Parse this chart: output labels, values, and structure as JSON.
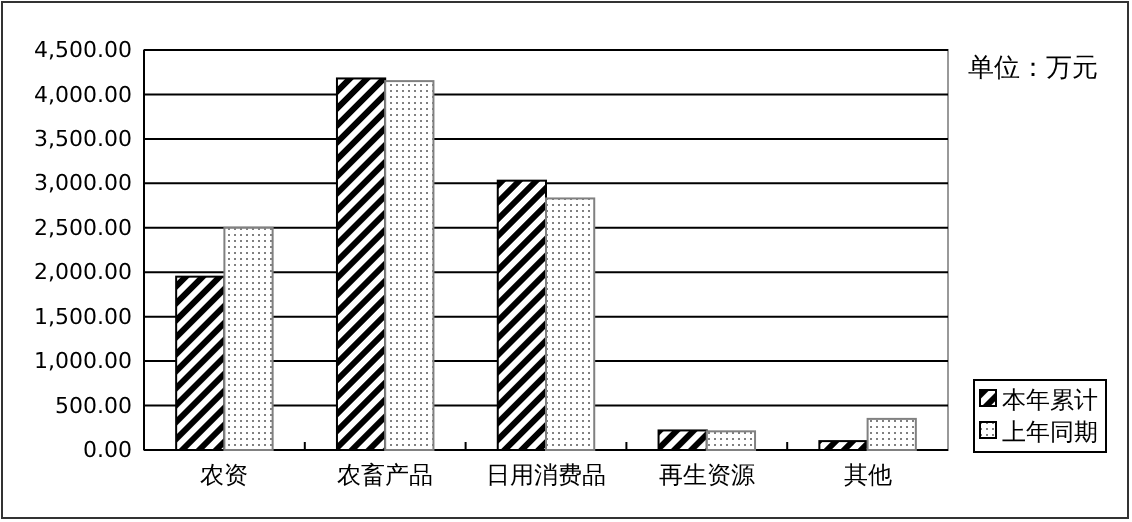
{
  "chart_data": {
    "type": "bar",
    "categories": [
      "农资",
      "农畜产品",
      "日用消费品",
      "再生资源",
      "其他"
    ],
    "series": [
      {
        "name": "本年累计",
        "color": "#000000",
        "values": [
          1950,
          4180,
          3030,
          220,
          100
        ]
      },
      {
        "name": "上年同期",
        "color": "#808080",
        "values": [
          2500,
          4150,
          2830,
          210,
          350
        ]
      }
    ],
    "ylim": [
      0,
      4500
    ],
    "yticks": [
      {
        "value": 0,
        "label": "0.00"
      },
      {
        "value": 500,
        "label": "500.00"
      },
      {
        "value": 1000,
        "label": "1,000.00"
      },
      {
        "value": 1500,
        "label": "1,500.00"
      },
      {
        "value": 2000,
        "label": "2,000.00"
      },
      {
        "value": 2500,
        "label": "2,500.00"
      },
      {
        "value": 3000,
        "label": "3,000.00"
      },
      {
        "value": 3500,
        "label": "3,500.00"
      },
      {
        "value": 4000,
        "label": "4,000.00"
      },
      {
        "value": 4500,
        "label": "4,500.00"
      }
    ],
    "grid": "y",
    "legend": "right",
    "annotations": [
      "单位：万元"
    ]
  }
}
